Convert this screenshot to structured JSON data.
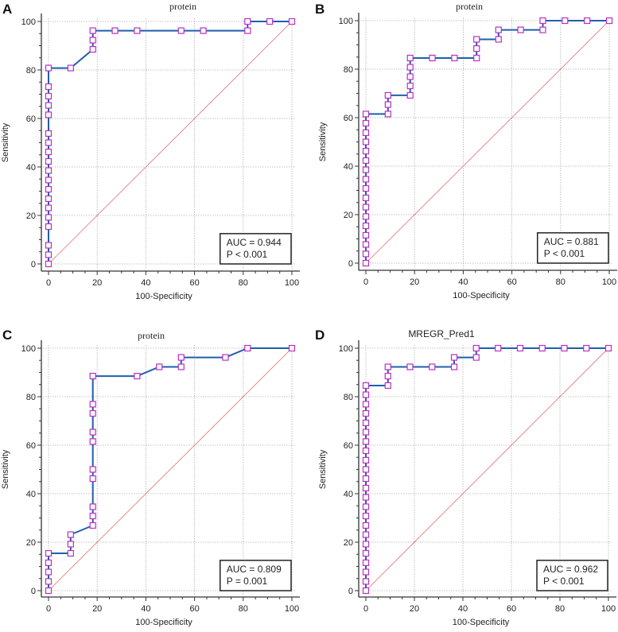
{
  "colors": {
    "curve": "#1f5fad",
    "marker": "#b82fc4",
    "diagonal": "#e07070",
    "grid": "#b0b0b0",
    "axis": "#333333"
  },
  "chart_data": [
    {
      "panel_label": "A",
      "type": "line",
      "title": "protein",
      "xlabel": "100-Specificity",
      "ylabel": "Sensitivity",
      "xlim": [
        0,
        100
      ],
      "ylim": [
        0,
        100
      ],
      "ticks": [
        0,
        20,
        40,
        60,
        80,
        100
      ],
      "grid": true,
      "auc_text": "AUC = 0.944",
      "p_text": "P < 0.001",
      "legend_position": "bottom-right",
      "points": [
        [
          0,
          0
        ],
        [
          0,
          3.8
        ],
        [
          0,
          7.7
        ],
        [
          0,
          15.4
        ],
        [
          0,
          19.2
        ],
        [
          0,
          23.1
        ],
        [
          0,
          26.9
        ],
        [
          0,
          30.8
        ],
        [
          0,
          34.6
        ],
        [
          0,
          38.5
        ],
        [
          0,
          42.3
        ],
        [
          0,
          46.2
        ],
        [
          0,
          50
        ],
        [
          0,
          53.8
        ],
        [
          0,
          61.5
        ],
        [
          0,
          65.4
        ],
        [
          0,
          69.2
        ],
        [
          0,
          73.1
        ],
        [
          0,
          80.8
        ],
        [
          9.1,
          80.8
        ],
        [
          18.2,
          88.5
        ],
        [
          18.2,
          92.3
        ],
        [
          18.2,
          96.2
        ],
        [
          27.3,
          96.2
        ],
        [
          36.4,
          96.2
        ],
        [
          54.5,
          96.2
        ],
        [
          63.6,
          96.2
        ],
        [
          81.8,
          96.2
        ],
        [
          81.8,
          100
        ],
        [
          90.9,
          100
        ],
        [
          100,
          100
        ]
      ]
    },
    {
      "panel_label": "B",
      "type": "line",
      "title": "protein",
      "xlabel": "100-Specificity",
      "ylabel": "Sensitivity",
      "xlim": [
        0,
        100
      ],
      "ylim": [
        0,
        100
      ],
      "ticks": [
        0,
        20,
        40,
        60,
        80,
        100
      ],
      "grid": true,
      "auc_text": "AUC = 0.881",
      "p_text": "P < 0.001",
      "legend_position": "bottom-right",
      "points": [
        [
          0,
          0
        ],
        [
          0,
          3.8
        ],
        [
          0,
          7.7
        ],
        [
          0,
          11.5
        ],
        [
          0,
          15.4
        ],
        [
          0,
          19.2
        ],
        [
          0,
          23.1
        ],
        [
          0,
          26.9
        ],
        [
          0,
          30.8
        ],
        [
          0,
          34.6
        ],
        [
          0,
          38.5
        ],
        [
          0,
          42.3
        ],
        [
          0,
          46.2
        ],
        [
          0,
          50
        ],
        [
          0,
          53.8
        ],
        [
          0,
          57.7
        ],
        [
          0,
          61.5
        ],
        [
          9.1,
          61.5
        ],
        [
          9.1,
          65.4
        ],
        [
          9.1,
          69.2
        ],
        [
          18.2,
          69.2
        ],
        [
          18.2,
          73.1
        ],
        [
          18.2,
          76.9
        ],
        [
          18.2,
          80.8
        ],
        [
          18.2,
          84.6
        ],
        [
          27.3,
          84.6
        ],
        [
          36.4,
          84.6
        ],
        [
          45.5,
          84.6
        ],
        [
          45.5,
          88.5
        ],
        [
          45.5,
          92.3
        ],
        [
          54.5,
          92.3
        ],
        [
          54.5,
          96.2
        ],
        [
          63.6,
          96.2
        ],
        [
          72.7,
          96.2
        ],
        [
          72.7,
          100
        ],
        [
          81.8,
          100
        ],
        [
          90.9,
          100
        ],
        [
          100,
          100
        ]
      ]
    },
    {
      "panel_label": "C",
      "type": "line",
      "title": "protein",
      "xlabel": "100-Specificity",
      "ylabel": "Sensitivity",
      "xlim": [
        0,
        100
      ],
      "ylim": [
        0,
        100
      ],
      "ticks": [
        0,
        20,
        40,
        60,
        80,
        100
      ],
      "grid": true,
      "auc_text": "AUC = 0.809",
      "p_text": "P = 0.001",
      "legend_position": "bottom-right",
      "points": [
        [
          0,
          0
        ],
        [
          0,
          3.8
        ],
        [
          0,
          7.7
        ],
        [
          0,
          11.5
        ],
        [
          0,
          15.4
        ],
        [
          9.1,
          15.4
        ],
        [
          9.1,
          19.2
        ],
        [
          9.1,
          23.1
        ],
        [
          18.2,
          26.9
        ],
        [
          18.2,
          30.8
        ],
        [
          18.2,
          34.6
        ],
        [
          18.2,
          46.2
        ],
        [
          18.2,
          50
        ],
        [
          18.2,
          61.5
        ],
        [
          18.2,
          65.4
        ],
        [
          18.2,
          73.1
        ],
        [
          18.2,
          76.9
        ],
        [
          18.2,
          88.5
        ],
        [
          36.4,
          88.5
        ],
        [
          45.5,
          92.3
        ],
        [
          54.5,
          92.3
        ],
        [
          54.5,
          96.2
        ],
        [
          72.7,
          96.2
        ],
        [
          81.8,
          100
        ],
        [
          100,
          100
        ]
      ]
    },
    {
      "panel_label": "D",
      "type": "line",
      "title": "MREGR_Pred1",
      "xlabel": "100-Specificity",
      "ylabel": "Sensitivity",
      "xlim": [
        0,
        100
      ],
      "ylim": [
        0,
        100
      ],
      "ticks": [
        0,
        20,
        40,
        60,
        80,
        100
      ],
      "grid": true,
      "auc_text": "AUC = 0.962",
      "p_text": "P < 0.001",
      "legend_position": "bottom-right",
      "points": [
        [
          0,
          0
        ],
        [
          0,
          3.8
        ],
        [
          0,
          7.7
        ],
        [
          0,
          11.5
        ],
        [
          0,
          15.4
        ],
        [
          0,
          19.2
        ],
        [
          0,
          23.1
        ],
        [
          0,
          26.9
        ],
        [
          0,
          30.8
        ],
        [
          0,
          34.6
        ],
        [
          0,
          38.5
        ],
        [
          0,
          42.3
        ],
        [
          0,
          46.2
        ],
        [
          0,
          50
        ],
        [
          0,
          53.8
        ],
        [
          0,
          57.7
        ],
        [
          0,
          61.5
        ],
        [
          0,
          65.4
        ],
        [
          0,
          69.2
        ],
        [
          0,
          73.1
        ],
        [
          0,
          76.9
        ],
        [
          0,
          80.8
        ],
        [
          0,
          84.6
        ],
        [
          9.1,
          84.6
        ],
        [
          9.1,
          88.5
        ],
        [
          9.1,
          92.3
        ],
        [
          18.2,
          92.3
        ],
        [
          27.3,
          92.3
        ],
        [
          36.4,
          92.3
        ],
        [
          36.4,
          96.2
        ],
        [
          45.5,
          96.2
        ],
        [
          45.5,
          100
        ],
        [
          54.5,
          100
        ],
        [
          63.6,
          100
        ],
        [
          72.7,
          100
        ],
        [
          81.8,
          100
        ],
        [
          90.9,
          100
        ],
        [
          100,
          100
        ]
      ]
    }
  ]
}
